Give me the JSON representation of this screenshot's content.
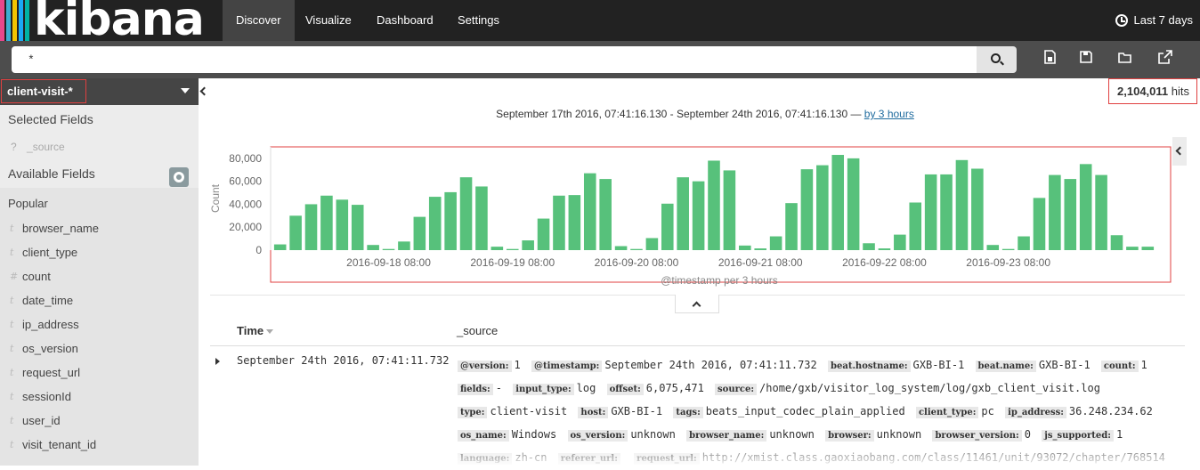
{
  "app": {
    "logo_text": "kibana",
    "logo_bar_colors": [
      "#e8488b",
      "#3caed2",
      "#f1c400",
      "#1ba9f5",
      "#00b3a4"
    ]
  },
  "nav": {
    "items": [
      {
        "label": "Discover",
        "active": true
      },
      {
        "label": "Visualize",
        "active": false
      },
      {
        "label": "Dashboard",
        "active": false
      },
      {
        "label": "Settings",
        "active": false
      }
    ],
    "time_picker": "Last 7 days"
  },
  "query": {
    "value": "*"
  },
  "toolbar": {
    "icons": [
      "new-search-icon",
      "save-icon",
      "open-icon",
      "share-icon"
    ]
  },
  "sidebar": {
    "index_pattern": "client-visit-*",
    "selected_fields_label": "Selected Fields",
    "selected_fields": [
      {
        "type": "?",
        "name": "_source"
      }
    ],
    "available_fields_label": "Available Fields",
    "popular_label": "Popular",
    "popular_fields": [
      {
        "type": "t",
        "name": "browser_name"
      },
      {
        "type": "t",
        "name": "client_type"
      },
      {
        "type": "#",
        "name": "count"
      },
      {
        "type": "t",
        "name": "date_time"
      },
      {
        "type": "t",
        "name": "ip_address"
      },
      {
        "type": "t",
        "name": "os_version"
      },
      {
        "type": "t",
        "name": "request_url"
      },
      {
        "type": "t",
        "name": "sessionId"
      },
      {
        "type": "t",
        "name": "user_id"
      },
      {
        "type": "t",
        "name": "visit_tenant_id"
      }
    ]
  },
  "hits": {
    "count": "2,104,011",
    "label": "hits"
  },
  "time_range": {
    "text": "September 17th 2016, 07:41:16.130 - September 24th 2016, 07:41:16.130 — ",
    "interval_link": "by 3 hours"
  },
  "chart_data": {
    "type": "bar",
    "color": "#57c17b",
    "xlabel": "@timestamp per 3 hours",
    "ylabel": "Count",
    "ylim": [
      0,
      90000
    ],
    "yticks": [
      0,
      20000,
      40000,
      60000,
      80000
    ],
    "ytick_labels": [
      "0",
      "20,000",
      "40,000",
      "60,000",
      "80,000"
    ],
    "xtick_labels": [
      "2016-09-18 08:00",
      "2016-09-19 08:00",
      "2016-09-20 08:00",
      "2016-09-21 08:00",
      "2016-09-22 08:00",
      "2016-09-23 08:00"
    ],
    "xtick_bar_index": [
      7,
      15,
      23,
      31,
      39,
      47
    ],
    "values": [
      5000,
      30000,
      40000,
      47500,
      44000,
      39500,
      4500,
      1000,
      7500,
      29000,
      46500,
      50500,
      63500,
      55500,
      3000,
      1000,
      8500,
      27500,
      47500,
      48000,
      67000,
      62000,
      3500,
      1000,
      10500,
      40500,
      63500,
      60000,
      78000,
      69500,
      4000,
      1500,
      12000,
      41000,
      70500,
      74000,
      83000,
      80000,
      6000,
      1500,
      13500,
      41500,
      66000,
      66000,
      78500,
      71000,
      4500,
      1000,
      12000,
      45500,
      65500,
      62000,
      75000,
      65500,
      13000,
      3000,
      3000
    ]
  },
  "table": {
    "columns": [
      "Time",
      "_source"
    ],
    "rows": [
      {
        "time": "September 24th 2016, 07:41:11.732",
        "source": [
          [
            "@version:",
            "1"
          ],
          [
            "@timestamp:",
            "September 24th 2016, 07:41:11.732"
          ],
          [
            "beat.hostname:",
            "GXB-BI-1"
          ],
          [
            "beat.name:",
            "GXB-BI-1"
          ],
          [
            "count:",
            "1"
          ],
          [
            "fields:",
            "-"
          ],
          [
            "input_type:",
            "log"
          ],
          [
            "offset:",
            "6,075,471"
          ],
          [
            "source:",
            "/home/gxb/visitor_log_system/log/gxb_client_visit.log"
          ],
          [
            "type:",
            "client-visit"
          ],
          [
            "host:",
            "GXB-BI-1"
          ],
          [
            "tags:",
            "beats_input_codec_plain_applied"
          ],
          [
            "client_type:",
            "pc"
          ],
          [
            "ip_address:",
            "36.248.234.62"
          ],
          [
            "os_name:",
            "Windows"
          ],
          [
            "os_version:",
            "unknown"
          ],
          [
            "browser_name:",
            "unknown"
          ],
          [
            "browser:",
            "unknown"
          ],
          [
            "browser_version:",
            "0"
          ],
          [
            "js_supported:",
            "1"
          ],
          [
            "language:",
            "zh-cn"
          ],
          [
            "referer_url:",
            ""
          ],
          [
            "request_url:",
            "http://xmist.class.gaoxiaobang.com/class/11461/unit/93072/chapter/768514"
          ]
        ]
      }
    ]
  }
}
